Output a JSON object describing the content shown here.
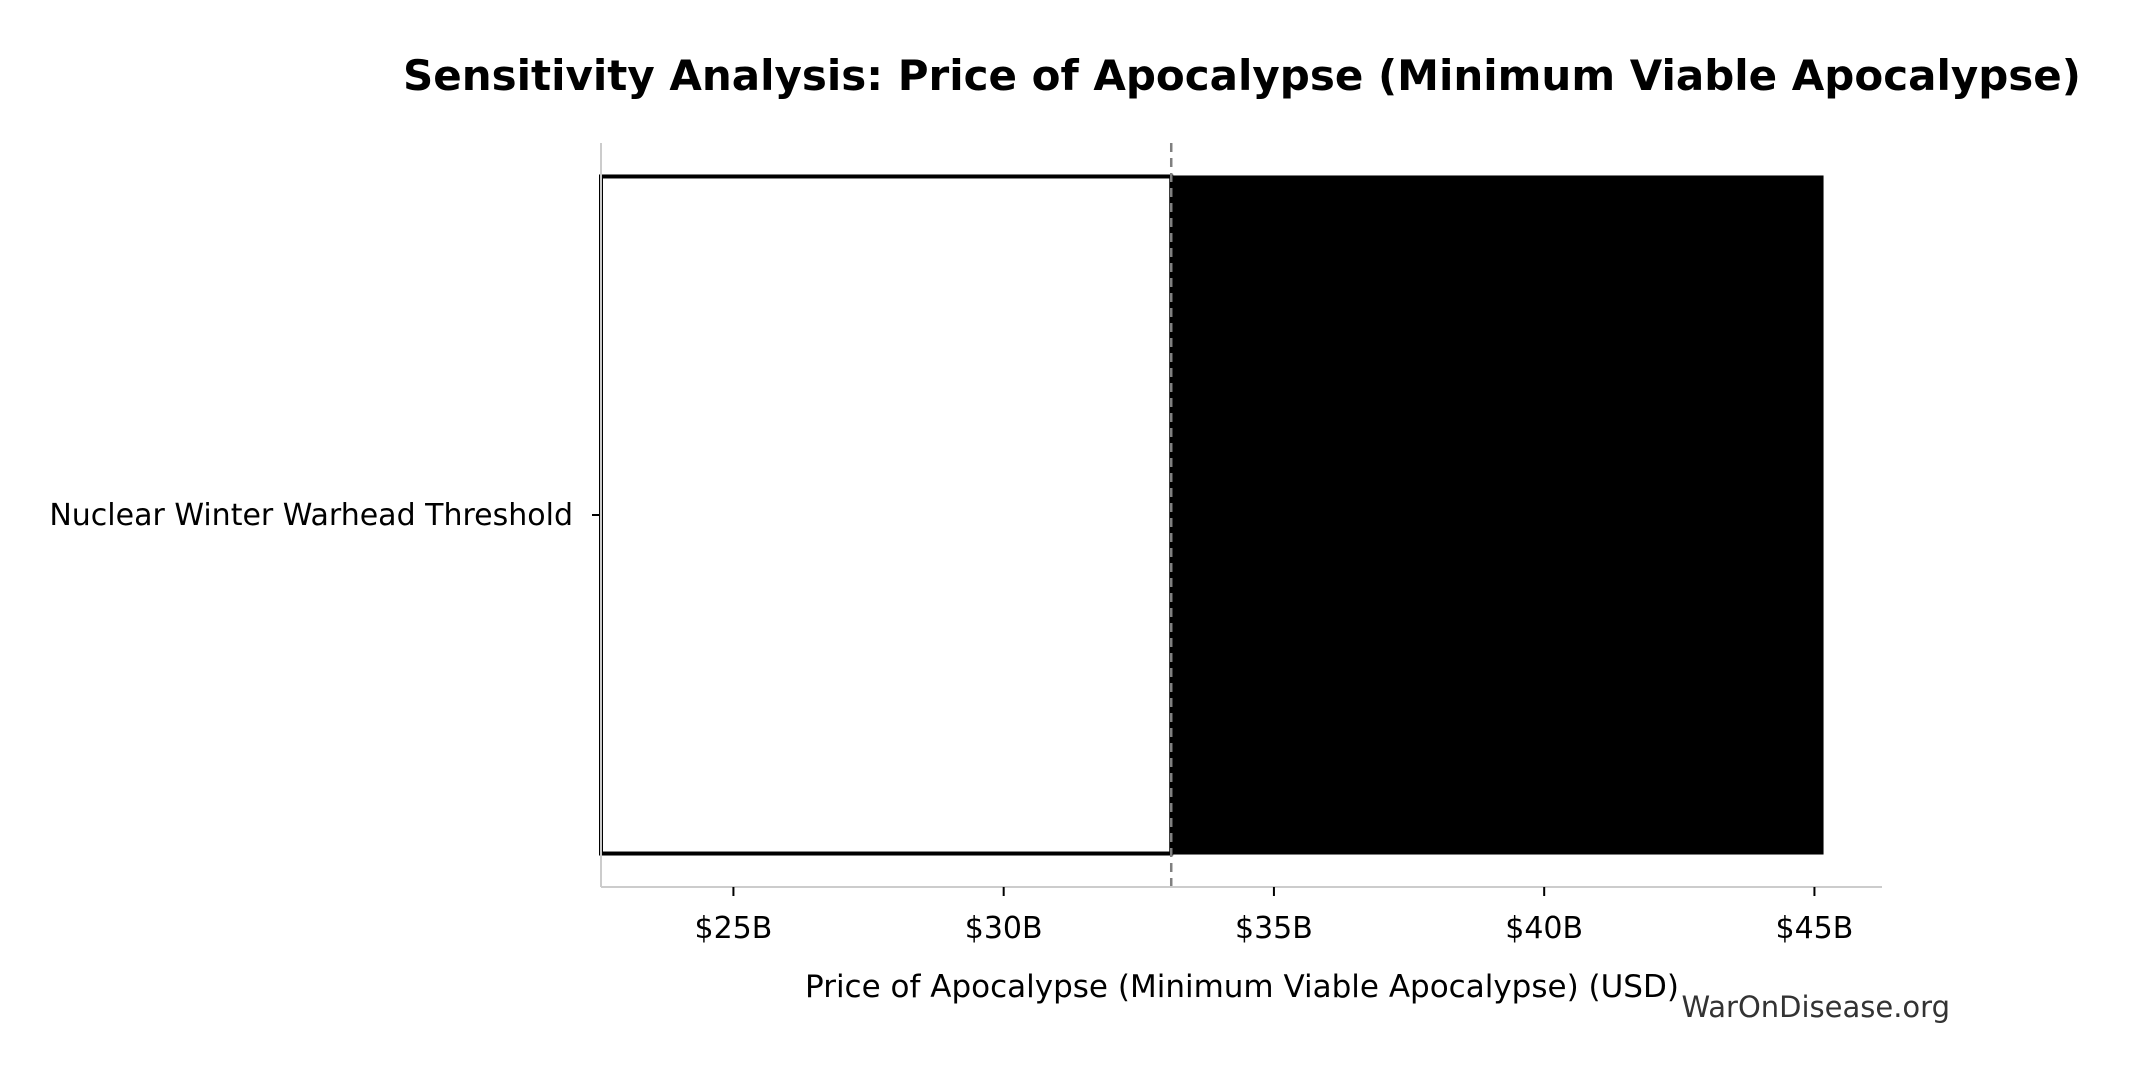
{
  "chart_data": {
    "type": "bar",
    "orientation": "horizontal",
    "variant": "tornado",
    "title": "Sensitivity Analysis: Price of Apocalypse (Minimum Viable Apocalypse)",
    "xlabel": "Price of Apocalypse (Minimum Viable Apocalypse) (USD)",
    "ylabel": "",
    "xlim": [
      22.55,
      46.25
    ],
    "x_unit": "billion USD",
    "xticks": [
      25,
      30,
      35,
      40,
      45
    ],
    "xtick_labels": [
      "$25B",
      "$30B",
      "$35B",
      "$40B",
      "$45B"
    ],
    "baseline": 33.1,
    "categories": [
      "Nuclear Winter Warhead Threshold"
    ],
    "series": [
      {
        "low": 22.55,
        "base": 33.1,
        "high": 45.15
      }
    ],
    "colors": {
      "low_fill": "#ffffff",
      "high_fill": "#000000",
      "edge": "#000000",
      "baseline": "#808080",
      "axis": "#cccccc"
    },
    "grid": false
  },
  "watermark": "WarOnDisease.org"
}
